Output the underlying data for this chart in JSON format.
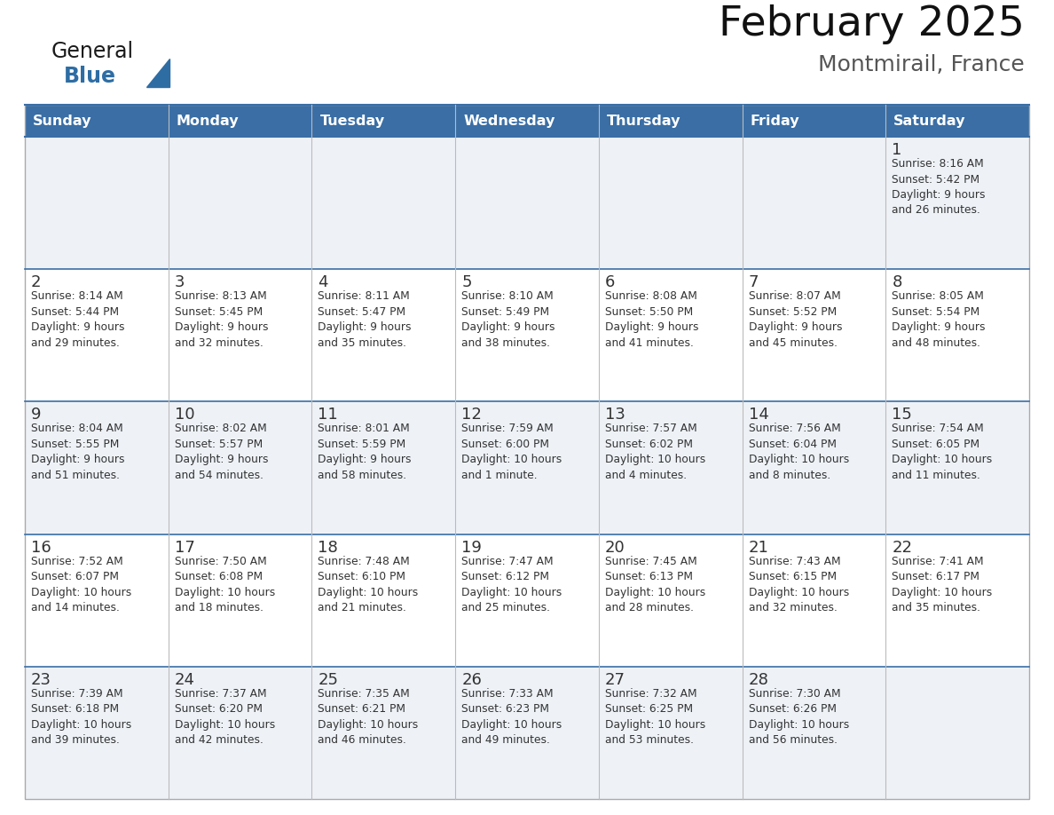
{
  "title": "February 2025",
  "subtitle": "Montmirail, France",
  "days_of_week": [
    "Sunday",
    "Monday",
    "Tuesday",
    "Wednesday",
    "Thursday",
    "Friday",
    "Saturday"
  ],
  "header_bg": "#3A6EA5",
  "header_text": "#FFFFFF",
  "cell_bg_even": "#FFFFFF",
  "cell_bg_odd": "#EEF2F7",
  "border_color": "#3A6EA5",
  "row_line_color": "#3A6EA5",
  "text_color": "#333333",
  "day_num_color": "#333333",
  "logo_general_color": "#1a1a1a",
  "logo_blue_color": "#2E6DA4",
  "figsize": [
    11.88,
    9.18
  ],
  "dpi": 100,
  "calendar_data": [
    [
      {
        "day": null,
        "info": null
      },
      {
        "day": null,
        "info": null
      },
      {
        "day": null,
        "info": null
      },
      {
        "day": null,
        "info": null
      },
      {
        "day": null,
        "info": null
      },
      {
        "day": null,
        "info": null
      },
      {
        "day": 1,
        "info": "Sunrise: 8:16 AM\nSunset: 5:42 PM\nDaylight: 9 hours\nand 26 minutes."
      }
    ],
    [
      {
        "day": 2,
        "info": "Sunrise: 8:14 AM\nSunset: 5:44 PM\nDaylight: 9 hours\nand 29 minutes."
      },
      {
        "day": 3,
        "info": "Sunrise: 8:13 AM\nSunset: 5:45 PM\nDaylight: 9 hours\nand 32 minutes."
      },
      {
        "day": 4,
        "info": "Sunrise: 8:11 AM\nSunset: 5:47 PM\nDaylight: 9 hours\nand 35 minutes."
      },
      {
        "day": 5,
        "info": "Sunrise: 8:10 AM\nSunset: 5:49 PM\nDaylight: 9 hours\nand 38 minutes."
      },
      {
        "day": 6,
        "info": "Sunrise: 8:08 AM\nSunset: 5:50 PM\nDaylight: 9 hours\nand 41 minutes."
      },
      {
        "day": 7,
        "info": "Sunrise: 8:07 AM\nSunset: 5:52 PM\nDaylight: 9 hours\nand 45 minutes."
      },
      {
        "day": 8,
        "info": "Sunrise: 8:05 AM\nSunset: 5:54 PM\nDaylight: 9 hours\nand 48 minutes."
      }
    ],
    [
      {
        "day": 9,
        "info": "Sunrise: 8:04 AM\nSunset: 5:55 PM\nDaylight: 9 hours\nand 51 minutes."
      },
      {
        "day": 10,
        "info": "Sunrise: 8:02 AM\nSunset: 5:57 PM\nDaylight: 9 hours\nand 54 minutes."
      },
      {
        "day": 11,
        "info": "Sunrise: 8:01 AM\nSunset: 5:59 PM\nDaylight: 9 hours\nand 58 minutes."
      },
      {
        "day": 12,
        "info": "Sunrise: 7:59 AM\nSunset: 6:00 PM\nDaylight: 10 hours\nand 1 minute."
      },
      {
        "day": 13,
        "info": "Sunrise: 7:57 AM\nSunset: 6:02 PM\nDaylight: 10 hours\nand 4 minutes."
      },
      {
        "day": 14,
        "info": "Sunrise: 7:56 AM\nSunset: 6:04 PM\nDaylight: 10 hours\nand 8 minutes."
      },
      {
        "day": 15,
        "info": "Sunrise: 7:54 AM\nSunset: 6:05 PM\nDaylight: 10 hours\nand 11 minutes."
      }
    ],
    [
      {
        "day": 16,
        "info": "Sunrise: 7:52 AM\nSunset: 6:07 PM\nDaylight: 10 hours\nand 14 minutes."
      },
      {
        "day": 17,
        "info": "Sunrise: 7:50 AM\nSunset: 6:08 PM\nDaylight: 10 hours\nand 18 minutes."
      },
      {
        "day": 18,
        "info": "Sunrise: 7:48 AM\nSunset: 6:10 PM\nDaylight: 10 hours\nand 21 minutes."
      },
      {
        "day": 19,
        "info": "Sunrise: 7:47 AM\nSunset: 6:12 PM\nDaylight: 10 hours\nand 25 minutes."
      },
      {
        "day": 20,
        "info": "Sunrise: 7:45 AM\nSunset: 6:13 PM\nDaylight: 10 hours\nand 28 minutes."
      },
      {
        "day": 21,
        "info": "Sunrise: 7:43 AM\nSunset: 6:15 PM\nDaylight: 10 hours\nand 32 minutes."
      },
      {
        "day": 22,
        "info": "Sunrise: 7:41 AM\nSunset: 6:17 PM\nDaylight: 10 hours\nand 35 minutes."
      }
    ],
    [
      {
        "day": 23,
        "info": "Sunrise: 7:39 AM\nSunset: 6:18 PM\nDaylight: 10 hours\nand 39 minutes."
      },
      {
        "day": 24,
        "info": "Sunrise: 7:37 AM\nSunset: 6:20 PM\nDaylight: 10 hours\nand 42 minutes."
      },
      {
        "day": 25,
        "info": "Sunrise: 7:35 AM\nSunset: 6:21 PM\nDaylight: 10 hours\nand 46 minutes."
      },
      {
        "day": 26,
        "info": "Sunrise: 7:33 AM\nSunset: 6:23 PM\nDaylight: 10 hours\nand 49 minutes."
      },
      {
        "day": 27,
        "info": "Sunrise: 7:32 AM\nSunset: 6:25 PM\nDaylight: 10 hours\nand 53 minutes."
      },
      {
        "day": 28,
        "info": "Sunrise: 7:30 AM\nSunset: 6:26 PM\nDaylight: 10 hours\nand 56 minutes."
      },
      {
        "day": null,
        "info": null
      }
    ]
  ]
}
